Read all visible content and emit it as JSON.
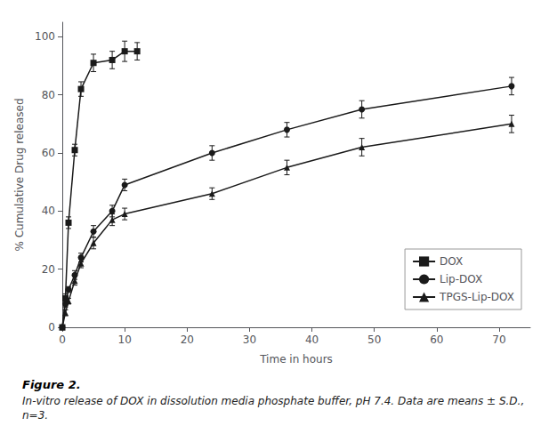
{
  "chart_data": {
    "type": "line",
    "title": "Figure 2.",
    "subtitle": "In-vitro release of DOX in dissolution media phosphate buffer, pH 7.4. Data are means ± S.D., n=3.",
    "xlabel": "Time in hours",
    "ylabel": "% Cumulative Drug released",
    "xlim": [
      0,
      75
    ],
    "ylim": [
      0,
      105
    ],
    "xticks": [
      0,
      10,
      20,
      30,
      40,
      50,
      60,
      70
    ],
    "yticks": [
      0,
      20,
      40,
      60,
      80,
      100
    ],
    "grid": false,
    "legend": "lower right",
    "color": "#1a1a1a",
    "series": [
      {
        "name": "DOX",
        "marker": "square",
        "x": [
          0,
          0.5,
          1,
          2,
          3,
          5,
          8,
          10,
          12
        ],
        "values": [
          0,
          10,
          36,
          61,
          82,
          91,
          92,
          95,
          95
        ],
        "error": [
          0,
          1.5,
          2,
          2,
          2.5,
          3,
          3,
          3.5,
          3
        ]
      },
      {
        "name": "Lip-DOX",
        "marker": "circle",
        "x": [
          0,
          0.5,
          1,
          2,
          3,
          5,
          8,
          10,
          24,
          36,
          48,
          72
        ],
        "values": [
          0,
          8,
          13,
          18,
          24,
          33,
          40,
          49,
          60,
          68,
          75,
          83
        ],
        "error": [
          0,
          1,
          1,
          1.5,
          1.5,
          2,
          2,
          2,
          2.5,
          2.5,
          3,
          3
        ]
      },
      {
        "name": "TPGS-Lip-DOX",
        "marker": "triangle",
        "x": [
          0,
          0.5,
          1,
          2,
          3,
          5,
          8,
          10,
          24,
          36,
          48,
          72
        ],
        "values": [
          0,
          5,
          9,
          16,
          22,
          29,
          37,
          39,
          46,
          55,
          62,
          70
        ],
        "error": [
          0,
          1,
          1,
          1.5,
          1.5,
          2,
          2,
          2,
          2,
          2.5,
          3,
          3
        ]
      }
    ]
  }
}
